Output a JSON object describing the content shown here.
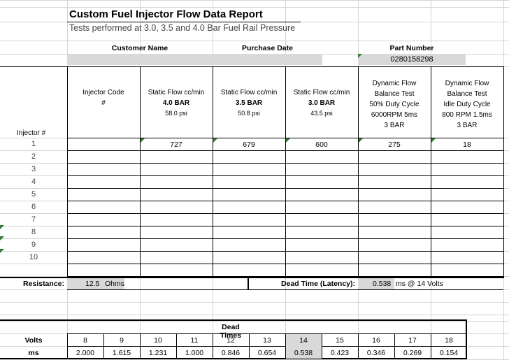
{
  "report": {
    "title": "Custom Fuel Injector Flow Data Report",
    "subtitle": "Tests performed at 3.0, 3.5 and 4.0 Bar Fuel Rail Pressure"
  },
  "info": {
    "customer_label": "Customer Name",
    "purchase_label": "Purchase Date",
    "part_label": "Part Number",
    "part_value": "0280158298"
  },
  "table": {
    "injector_hash_label": "Injector #",
    "columns": [
      {
        "lines": [
          "Injector Code",
          "#"
        ]
      },
      {
        "lines": [
          "Static Flow cc/min",
          "4.0 BAR",
          "58.0 psi"
        ]
      },
      {
        "lines": [
          "Static Flow cc/min",
          "3.5 BAR",
          "50.8 psi"
        ]
      },
      {
        "lines": [
          "Static Flow cc/min",
          "3.0 BAR",
          "43.5 psi"
        ]
      },
      {
        "lines": [
          "Dynamic Flow",
          "Balance Test",
          "50% Duty Cycle",
          "6000RPM 5ms",
          "3 BAR"
        ]
      },
      {
        "lines": [
          "Dynamic Flow",
          "Balance Test",
          "Idle Duty Cycle",
          "800 RPM 1.5ms",
          "3 BAR"
        ]
      }
    ],
    "rows": [
      {
        "num": "1",
        "values": [
          "",
          "727",
          "679",
          "600",
          "275",
          "18"
        ]
      },
      {
        "num": "2",
        "values": [
          "",
          "",
          "",
          "",
          "",
          ""
        ]
      },
      {
        "num": "3",
        "values": [
          "",
          "",
          "",
          "",
          "",
          ""
        ]
      },
      {
        "num": "4",
        "values": [
          "",
          "",
          "",
          "",
          "",
          ""
        ]
      },
      {
        "num": "5",
        "values": [
          "",
          "",
          "",
          "",
          "",
          ""
        ]
      },
      {
        "num": "6",
        "values": [
          "",
          "",
          "",
          "",
          "",
          ""
        ]
      },
      {
        "num": "7",
        "values": [
          "",
          "",
          "",
          "",
          "",
          ""
        ]
      },
      {
        "num": "8",
        "values": [
          "",
          "",
          "",
          "",
          "",
          ""
        ]
      },
      {
        "num": "9",
        "values": [
          "",
          "",
          "",
          "",
          "",
          ""
        ]
      },
      {
        "num": "10",
        "values": [
          "",
          "",
          "",
          "",
          "",
          ""
        ]
      }
    ]
  },
  "resistance": {
    "label": "Resistance:",
    "value": "12.5",
    "unit": "Ohms"
  },
  "deadtime": {
    "label": "Dead Time (Latency):",
    "value": "0.538",
    "unit": "ms @ 14 Volts"
  },
  "dead_times": {
    "title": "Dead Times",
    "volts_label": "Volts",
    "ms_label": "ms",
    "volts": [
      "8",
      "9",
      "10",
      "11",
      "12",
      "13",
      "14",
      "15",
      "16",
      "17",
      "18"
    ],
    "ms": [
      "2.000",
      "1.615",
      "1.231",
      "1.000",
      "0.846",
      "0.654",
      "0.538",
      "0.423",
      "0.346",
      "0.269",
      "0.154"
    ],
    "highlight_color": "#d9d9d9"
  }
}
